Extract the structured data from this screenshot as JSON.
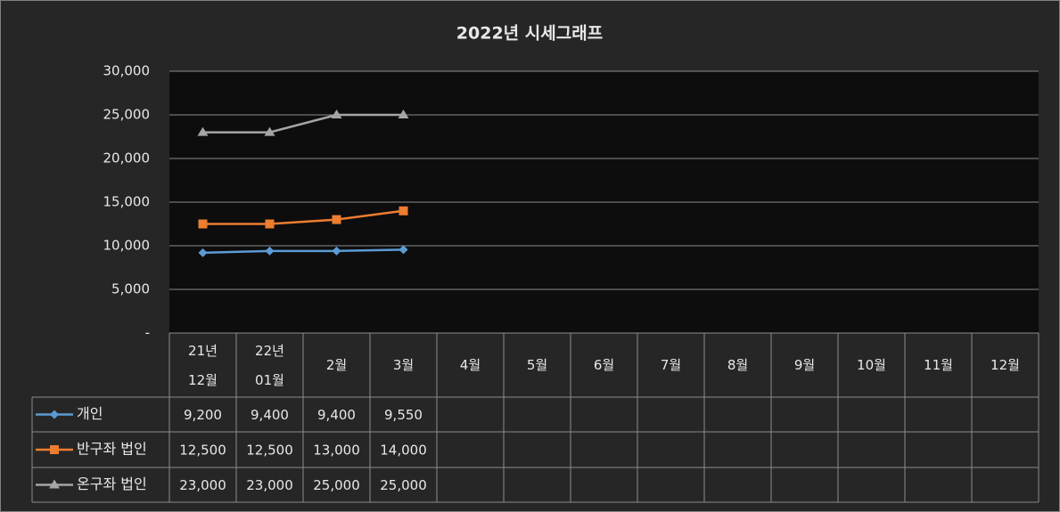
{
  "chart_data": {
    "type": "line",
    "title": "2022년 시세그래프",
    "categories": [
      "21년\n12월",
      "22년\n01월",
      "2월",
      "3월",
      "4월",
      "5월",
      "6월",
      "7월",
      "8월",
      "9월",
      "10월",
      "11월",
      "12월"
    ],
    "series": [
      {
        "name": "개인",
        "color": "#5b9bd5",
        "marker": "diamond",
        "values": [
          9200,
          9400,
          9400,
          9550,
          null,
          null,
          null,
          null,
          null,
          null,
          null,
          null,
          null
        ],
        "value_labels": [
          "9,200",
          "9,400",
          "9,400",
          "9,550",
          null,
          null,
          null,
          null,
          null,
          null,
          null,
          null,
          null
        ]
      },
      {
        "name": "반구좌 법인",
        "color": "#ed7d31",
        "marker": "square",
        "values": [
          12500,
          12500,
          13000,
          14000,
          null,
          null,
          null,
          null,
          null,
          null,
          null,
          null,
          null
        ],
        "value_labels": [
          "12,500",
          "12,500",
          "13,000",
          "14,000",
          null,
          null,
          null,
          null,
          null,
          null,
          null,
          null,
          null
        ]
      },
      {
        "name": "온구좌 법인",
        "color": "#a5a5a5",
        "marker": "triangle",
        "values": [
          23000,
          23000,
          25000,
          25000,
          null,
          null,
          null,
          null,
          null,
          null,
          null,
          null,
          null
        ],
        "value_labels": [
          "23,000",
          "23,000",
          "25,000",
          "25,000",
          null,
          null,
          null,
          null,
          null,
          null,
          null,
          null,
          null
        ]
      }
    ],
    "ylim": [
      0,
      30000
    ],
    "yticks": [
      {
        "value": 0,
        "label": "-"
      },
      {
        "value": 5000,
        "label": "5,000"
      },
      {
        "value": 10000,
        "label": "10,000"
      },
      {
        "value": 15000,
        "label": "15,000"
      },
      {
        "value": 20000,
        "label": "20,000"
      },
      {
        "value": 25000,
        "label": "25,000"
      },
      {
        "value": 30000,
        "label": "30,000"
      }
    ],
    "grid": true
  }
}
